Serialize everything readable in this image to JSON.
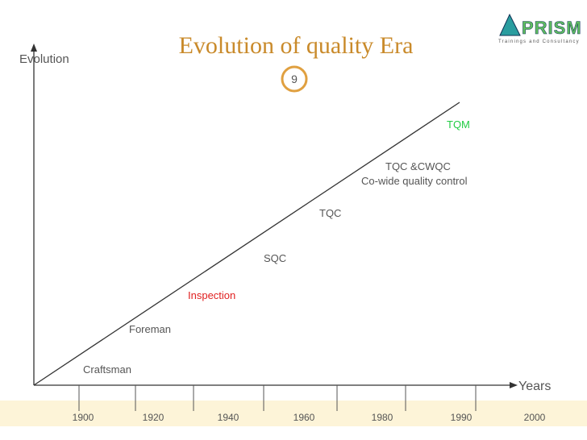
{
  "header": {
    "title": "Evolution of quality Era",
    "page_number": "9"
  },
  "logo": {
    "name": "PRISM",
    "tagline": "Trainings and Consultancy"
  },
  "axes": {
    "y_label": "Evolution",
    "x_label": "Years"
  },
  "eras": [
    "Craftsman",
    "Foreman",
    "Inspection",
    "SQC",
    "TQC",
    "TQC &CWQC",
    "Co-wide quality control",
    "TQM"
  ],
  "years": [
    "1900",
    "1920",
    "1940",
    "1960",
    "1980",
    "1990",
    "2000"
  ]
}
